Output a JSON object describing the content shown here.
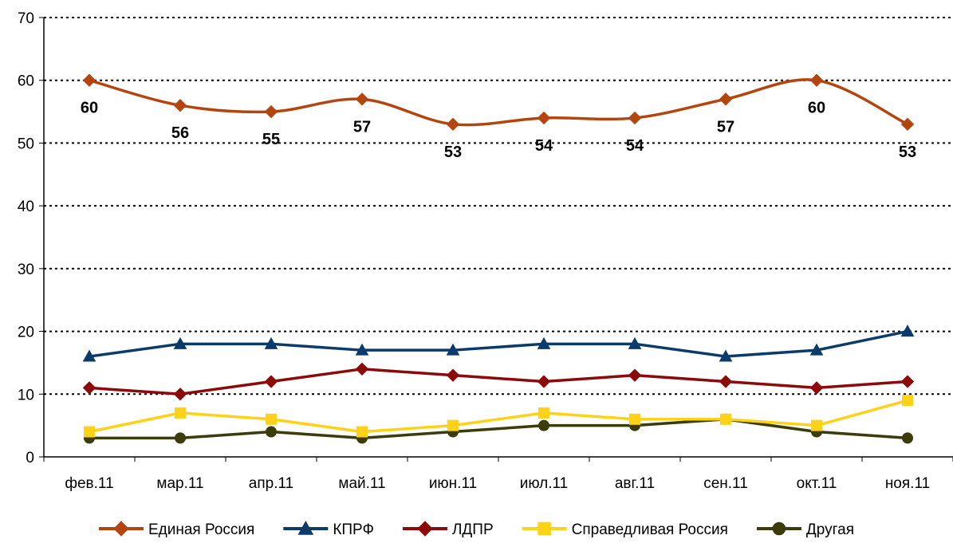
{
  "chart_data": {
    "type": "line",
    "categories": [
      "фев.11",
      "мар.11",
      "апр.11",
      "май.11",
      "июн.11",
      "июл.11",
      "авг.11",
      "сен.11",
      "окт.11",
      "ноя.11"
    ],
    "ylim": [
      0,
      70
    ],
    "yticks": [
      0,
      10,
      20,
      30,
      40,
      50,
      60,
      70
    ],
    "grid": "horizontal dotted",
    "legend_position": "bottom",
    "series": [
      {
        "name": "Единая Россия",
        "color": "#b5450f",
        "marker": "diamond",
        "smooth": true,
        "labels": true,
        "values": [
          60,
          56,
          55,
          57,
          53,
          54,
          54,
          57,
          60,
          53
        ]
      },
      {
        "name": "КПРФ",
        "color": "#0b3b6b",
        "marker": "triangle",
        "smooth": false,
        "labels": false,
        "values": [
          16,
          18,
          18,
          17,
          17,
          18,
          18,
          16,
          17,
          20
        ]
      },
      {
        "name": "ЛДПР",
        "color": "#8b0a0a",
        "marker": "diamond",
        "smooth": false,
        "labels": false,
        "values": [
          11,
          10,
          12,
          14,
          13,
          12,
          13,
          12,
          11,
          12
        ]
      },
      {
        "name": "Справедливая Россия",
        "color": "#ffd21a",
        "marker": "square",
        "smooth": false,
        "labels": false,
        "values": [
          4,
          7,
          6,
          4,
          5,
          7,
          6,
          6,
          5,
          9
        ]
      },
      {
        "name": "Другая",
        "color": "#3b3b0b",
        "marker": "circle",
        "smooth": false,
        "labels": false,
        "values": [
          3,
          3,
          4,
          3,
          4,
          5,
          5,
          6,
          4,
          3
        ]
      }
    ]
  }
}
